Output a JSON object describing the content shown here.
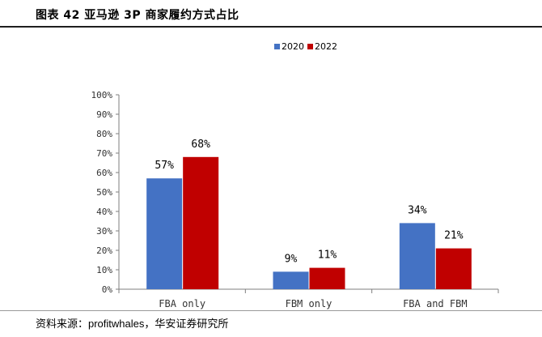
{
  "header": {
    "title": "图表 42 亚马逊 3P 商家履约方式占比"
  },
  "source": {
    "text": "资料来源：profitwhales，华安证券研究所"
  },
  "colors": {
    "series_2020": "#4472C4",
    "series_2022": "#C00000",
    "axis": "#7f7f7f"
  },
  "chart_data": {
    "type": "bar",
    "categories": [
      "FBA only",
      "FBM only",
      "FBA and FBM"
    ],
    "series": [
      {
        "name": "2020",
        "values": [
          57,
          9,
          34
        ],
        "labels": [
          "57%",
          "9%",
          "34%"
        ],
        "color": "#4472C4"
      },
      {
        "name": "2022",
        "values": [
          68,
          11,
          21
        ],
        "labels": [
          "68%",
          "11%",
          "21%"
        ],
        "color": "#C00000"
      }
    ],
    "ylim": [
      0,
      100
    ],
    "yticks": [
      "0%",
      "10%",
      "20%",
      "30%",
      "40%",
      "50%",
      "60%",
      "70%",
      "80%",
      "90%",
      "100%"
    ],
    "legend_position": "top-right",
    "grid": false
  }
}
